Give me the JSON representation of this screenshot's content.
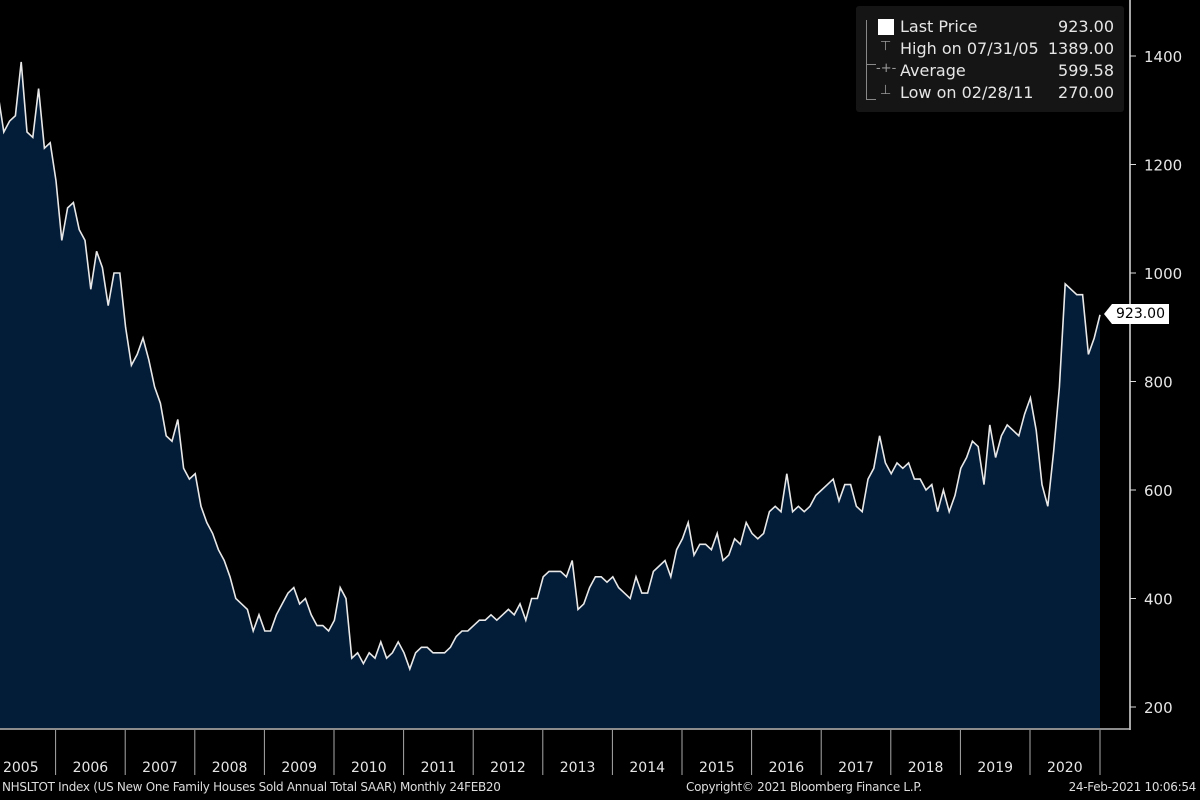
{
  "chart_data": {
    "type": "area",
    "title": "NHSLTOT Index (US New One Family Houses Sold Annual Total SAAR)  Monthly 24FEB20",
    "frequency": "Monthly",
    "x_start": "2005-01",
    "x_end": "2021-01",
    "ylim": [
      170,
      1520
    ],
    "yticks": [
      200,
      400,
      600,
      800,
      1000,
      1200,
      1400
    ],
    "xtick_labels": [
      "2005",
      "2006",
      "2007",
      "2008",
      "2009",
      "2010",
      "2011",
      "2012",
      "2013",
      "2014",
      "2015",
      "2016",
      "2017",
      "2018",
      "2019",
      "2020"
    ],
    "grid": false,
    "legend_position": "top-right",
    "series": [
      {
        "name": "Last Price",
        "values": [
          1340,
          1320,
          1330,
          1260,
          1280,
          1290,
          1389,
          1260,
          1250,
          1340,
          1230,
          1240,
          1170,
          1060,
          1120,
          1130,
          1080,
          1060,
          970,
          1040,
          1010,
          940,
          1000,
          1000,
          900,
          830,
          850,
          880,
          840,
          790,
          760,
          700,
          690,
          730,
          640,
          620,
          630,
          570,
          540,
          520,
          490,
          470,
          440,
          400,
          390,
          380,
          340,
          370,
          340,
          340,
          370,
          390,
          410,
          420,
          390,
          400,
          370,
          350,
          350,
          340,
          360,
          420,
          400,
          290,
          300,
          280,
          300,
          290,
          320,
          290,
          300,
          320,
          300,
          270,
          300,
          310,
          310,
          300,
          300,
          300,
          310,
          330,
          340,
          340,
          350,
          360,
          360,
          370,
          360,
          370,
          380,
          370,
          390,
          360,
          400,
          400,
          440,
          450,
          450,
          450,
          440,
          470,
          380,
          390,
          420,
          440,
          440,
          430,
          440,
          420,
          410,
          400,
          440,
          410,
          410,
          450,
          460,
          470,
          440,
          490,
          510,
          540,
          480,
          500,
          500,
          490,
          520,
          470,
          480,
          510,
          500,
          540,
          520,
          510,
          520,
          560,
          570,
          560,
          630,
          560,
          570,
          560,
          570,
          590,
          600,
          610,
          620,
          580,
          610,
          610,
          570,
          560,
          620,
          640,
          700,
          650,
          630,
          650,
          640,
          650,
          620,
          620,
          600,
          610,
          560,
          600,
          560,
          590,
          640,
          660,
          690,
          680,
          610,
          720,
          660,
          700,
          720,
          710,
          700,
          740,
          770,
          710,
          610,
          570,
          670,
          790,
          980,
          970,
          960,
          960,
          850,
          880,
          923
        ]
      }
    ],
    "colors": {
      "line": "#e8e8e8",
      "fill": "#031c38",
      "background": "#000000"
    }
  },
  "legend": {
    "rows": [
      {
        "label": "Last Price",
        "value": "923.00"
      },
      {
        "label": "High on 07/31/05",
        "value": "1389.00"
      },
      {
        "label": "Average",
        "value": "599.58"
      },
      {
        "label": "Low on 02/28/11",
        "value": "270.00"
      }
    ]
  },
  "last_price_tag": "923.00",
  "footer": {
    "left": "NHSLTOT Index (US New One Family Houses Sold Annual Total SAAR)  Monthly 24FEB20",
    "center": "Copyright© 2021 Bloomberg Finance L.P.",
    "right": "24-Feb-2021 10:06:54"
  }
}
